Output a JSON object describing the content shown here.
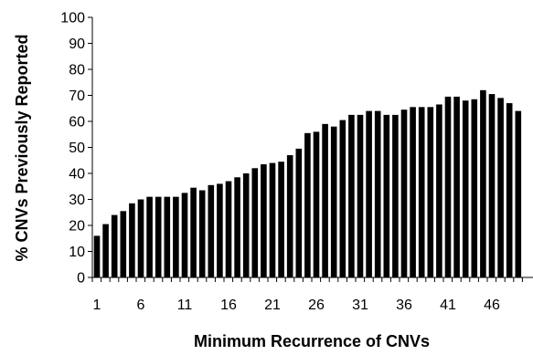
{
  "chart_data": {
    "type": "bar",
    "title": "",
    "xlabel": "Minimum Recurrence of CNVs",
    "ylabel": "% CNVs Previously Reported",
    "ylim": [
      0,
      100
    ],
    "yticks": [
      "0",
      "10",
      "20",
      "30",
      "40",
      "50",
      "60",
      "70",
      "80",
      "90",
      "100"
    ],
    "xticks": [
      "1",
      "6",
      "11",
      "16",
      "21",
      "26",
      "31",
      "36",
      "41",
      "46"
    ],
    "grid": false,
    "legend": "none",
    "bar_color": "#000000",
    "categories": [
      1,
      2,
      3,
      4,
      5,
      6,
      7,
      8,
      9,
      10,
      11,
      12,
      13,
      14,
      15,
      16,
      17,
      18,
      19,
      20,
      21,
      22,
      23,
      24,
      25,
      26,
      27,
      28,
      29,
      30,
      31,
      32,
      33,
      34,
      35,
      36,
      37,
      38,
      39,
      40,
      41,
      42,
      43,
      44,
      45,
      46,
      47,
      48,
      49
    ],
    "values": [
      16,
      20.5,
      24,
      25.5,
      28.5,
      30,
      31,
      31,
      31,
      31,
      32.5,
      34.5,
      33.5,
      35.5,
      36,
      37,
      38.5,
      40,
      42,
      43.5,
      44,
      44.5,
      47,
      49.5,
      55.5,
      56,
      59,
      58,
      60.5,
      62.5,
      62.5,
      64,
      64,
      62.5,
      62.5,
      64.5,
      65.5,
      65.5,
      65.5,
      66.5,
      69.5,
      69.5,
      68,
      68.5,
      72,
      70.5,
      69,
      67,
      64
    ]
  }
}
